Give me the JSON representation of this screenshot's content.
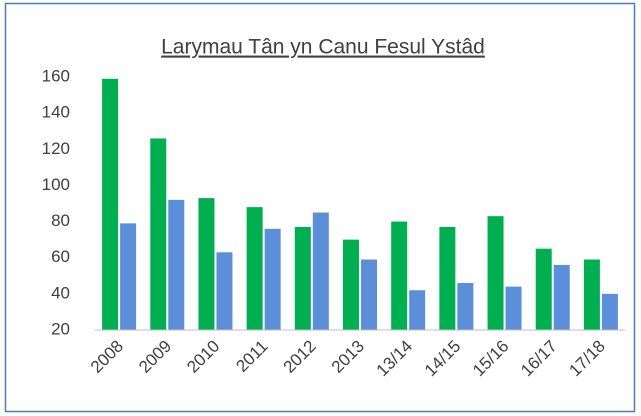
{
  "chart_data": {
    "type": "bar",
    "title": "Larymau Tân yn Canu Fesul Ystâd",
    "categories": [
      "2008",
      "2009",
      "2010",
      "2011",
      "2012",
      "2013",
      "13/14",
      "14/15",
      "15/16",
      "16/17",
      "17/18"
    ],
    "series": [
      {
        "color": "#00b050",
        "values": [
          159,
          126,
          93,
          88,
          77,
          70,
          80,
          77,
          83,
          65,
          59
        ]
      },
      {
        "color": "#5b8fd9",
        "values": [
          79,
          92,
          63,
          76,
          85,
          59,
          42,
          46,
          44,
          56,
          40
        ]
      }
    ],
    "ylim": [
      20,
      160
    ],
    "yticks": [
      20,
      40,
      60,
      80,
      100,
      120,
      140,
      160
    ],
    "grid": false
  }
}
